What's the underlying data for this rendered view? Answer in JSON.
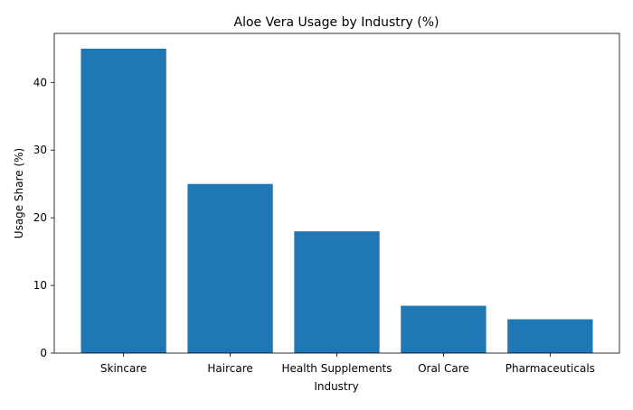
{
  "chart_data": {
    "type": "bar",
    "title": "Aloe Vera Usage by Industry (%)",
    "xlabel": "Industry",
    "ylabel": "Usage Share (%)",
    "categories": [
      "Skincare",
      "Haircare",
      "Health Supplements",
      "Oral Care",
      "Pharmaceuticals"
    ],
    "values": [
      45,
      25,
      18,
      7,
      5
    ],
    "ylim": [
      0,
      47.25
    ],
    "yticks": [
      0,
      10,
      20,
      30,
      40
    ],
    "grid": false,
    "bar_color": "#1f77b4"
  }
}
